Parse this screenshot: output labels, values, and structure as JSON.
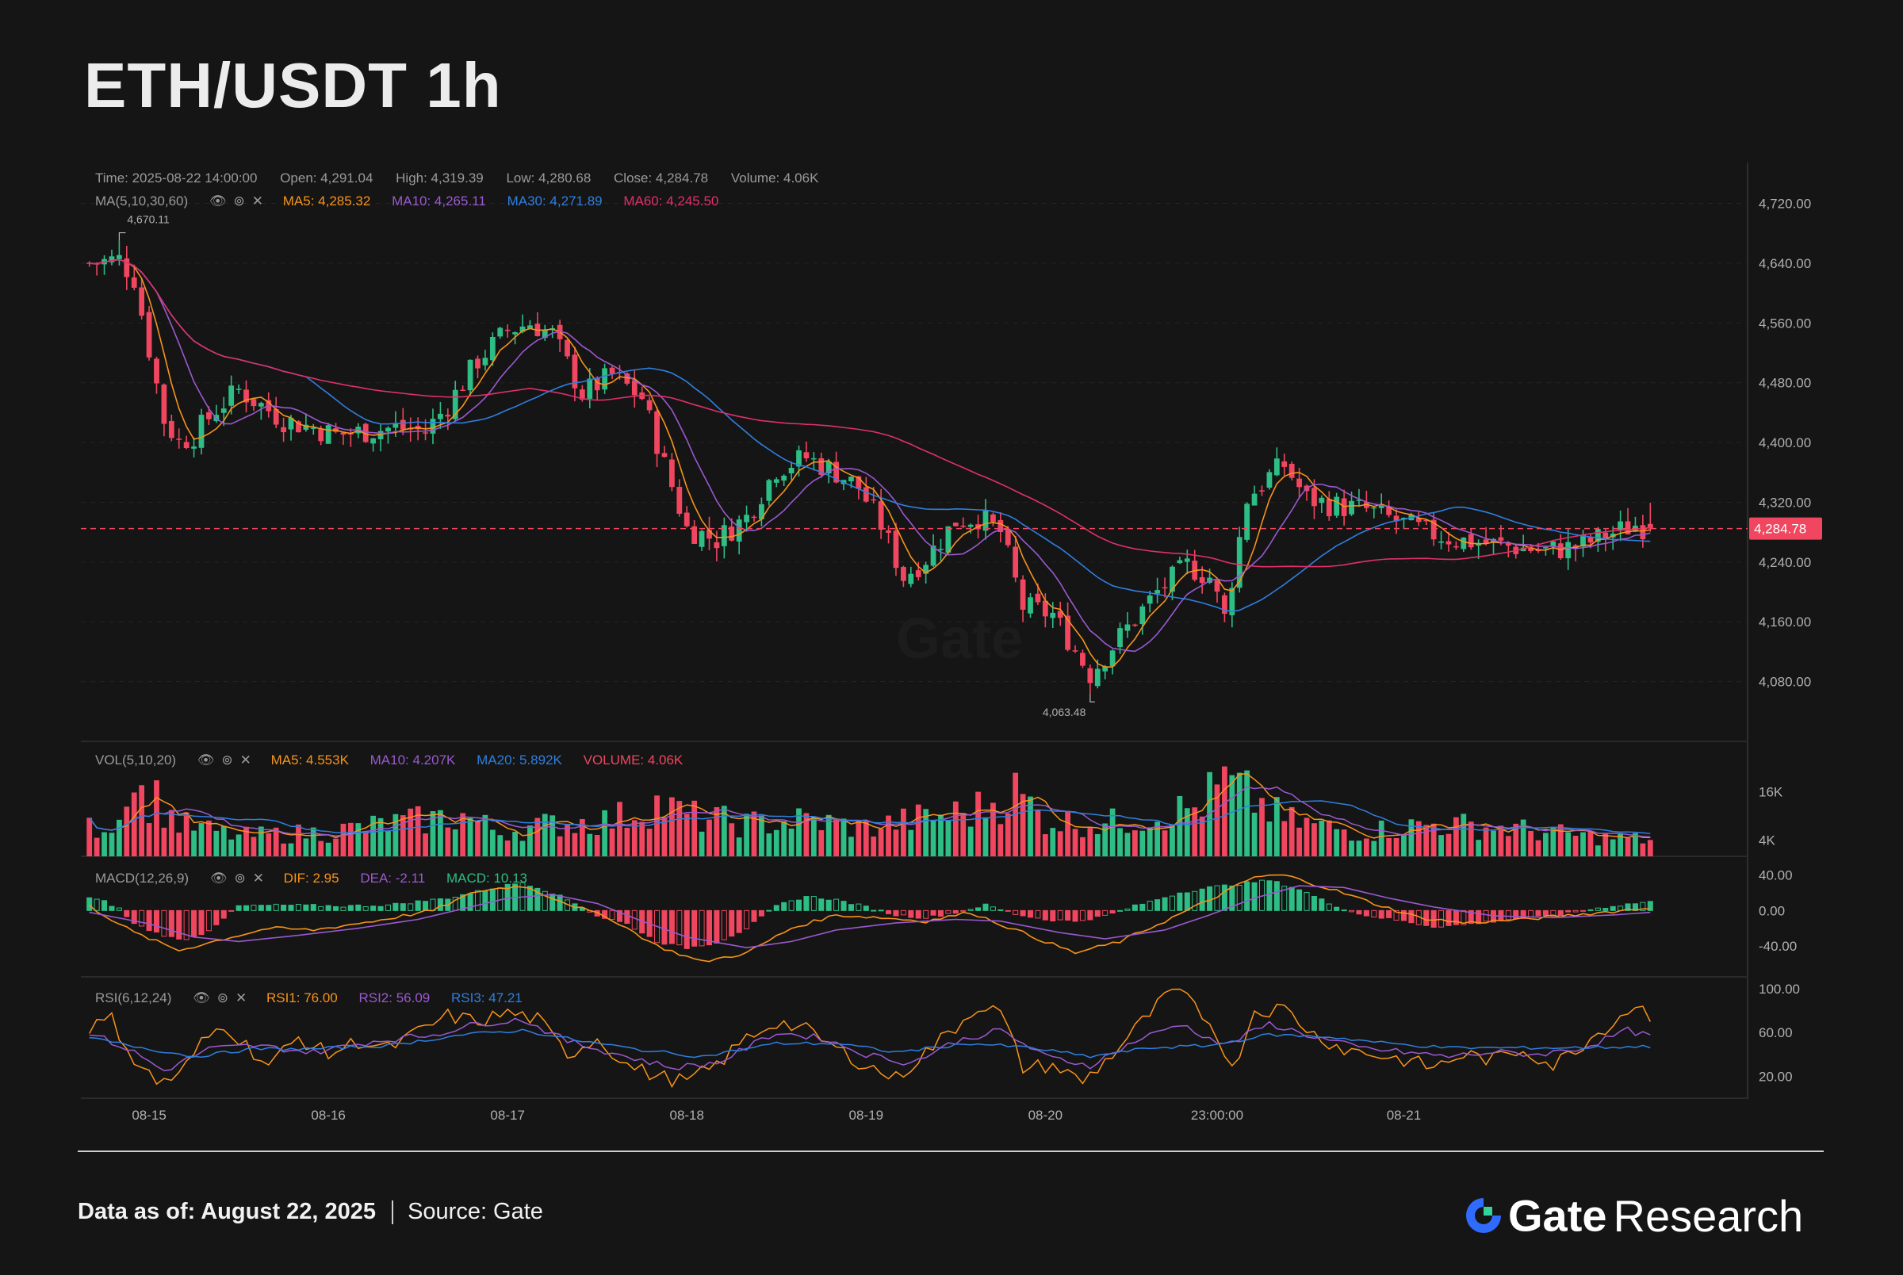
{
  "title": "ETH/USDT 1h",
  "ohlc_info": {
    "time": "Time: 2025-08-22 14:00:00",
    "open": "Open: 4,291.04",
    "high": "High: 4,319.39",
    "low": "Low: 4,280.68",
    "close": "Close: 4,284.78",
    "volume": "Volume: 4.06K"
  },
  "ma_info": {
    "label": "MA(5,10,30,60)",
    "ma5": "MA5: 4,285.32",
    "ma10": "MA10: 4,265.11",
    "ma30": "MA30: 4,271.89",
    "ma60": "MA60: 4,245.50"
  },
  "vol_info": {
    "label": "VOL(5,10,20)",
    "ma5": "MA5: 4.553K",
    "ma10": "MA10: 4.207K",
    "ma20": "MA20: 5.892K",
    "volume": "VOLUME: 4.06K"
  },
  "macd_info": {
    "label": "MACD(12,26,9)",
    "dif": "DIF: 2.95",
    "dea": "DEA: -2.11",
    "macd": "MACD: 10.13"
  },
  "rsi_info": {
    "label": "RSI(6,12,24)",
    "rsi1": "RSI1: 76.00",
    "rsi2": "RSI2: 56.09",
    "rsi3": "RSI3: 47.21"
  },
  "icons": [
    "eye-icon",
    "settings-icon",
    "close-icon"
  ],
  "colors": {
    "up": "#2ebd85",
    "down": "#f0465f",
    "ma5": "#f7931a",
    "ma10": "#9b59d0",
    "ma30": "#2f7fe0",
    "ma60": "#e0306a",
    "price_line": "#f0465f",
    "axis_text": "#b0b0b0",
    "grid": "#242424"
  },
  "chart_data": {
    "type": "candlestick",
    "symbol": "ETH/USDT",
    "interval": "1h",
    "price_axis": {
      "ticks": [
        4080,
        4160,
        4240,
        4320,
        4400,
        4480,
        4560,
        4640,
        4720
      ],
      "tick_labels": [
        "4,080.00",
        "4,160.00",
        "4,240.00",
        "4,320.00",
        "4,400.00",
        "4,480.00",
        "4,560.00",
        "4,640.00",
        "4,720.00"
      ],
      "range": [
        4000,
        4780
      ]
    },
    "x_axis": {
      "tick_labels": [
        "08-15",
        "08-16",
        "08-17",
        "08-18",
        "08-19",
        "08-20",
        "23:00:00",
        "08-21"
      ],
      "tick_bar_index": [
        8,
        32,
        56,
        80,
        104,
        128,
        151,
        176
      ]
    },
    "current_price": 4284.78,
    "current_price_label": "4,284.78",
    "high_marker": {
      "value": 4670.11,
      "label": "4,670.11",
      "bar_index": 4
    },
    "low_marker": {
      "value": 4063.48,
      "label": "4,063.48",
      "bar_index": 134
    },
    "price_keypoints": [
      [
        0,
        4640
      ],
      [
        4,
        4645
      ],
      [
        6,
        4620
      ],
      [
        10,
        4430
      ],
      [
        12,
        4400
      ],
      [
        14,
        4410
      ],
      [
        17,
        4445
      ],
      [
        20,
        4470
      ],
      [
        23,
        4450
      ],
      [
        26,
        4430
      ],
      [
        30,
        4420
      ],
      [
        33,
        4410
      ],
      [
        37,
        4415
      ],
      [
        41,
        4420
      ],
      [
        45,
        4415
      ],
      [
        48,
        4450
      ],
      [
        52,
        4510
      ],
      [
        56,
        4550
      ],
      [
        59,
        4560
      ],
      [
        62,
        4545
      ],
      [
        66,
        4465
      ],
      [
        70,
        4490
      ],
      [
        74,
        4460
      ],
      [
        77,
        4370
      ],
      [
        80,
        4285
      ],
      [
        84,
        4270
      ],
      [
        88,
        4300
      ],
      [
        92,
        4365
      ],
      [
        96,
        4380
      ],
      [
        100,
        4360
      ],
      [
        103,
        4340
      ],
      [
        106,
        4290
      ],
      [
        109,
        4220
      ],
      [
        112,
        4245
      ],
      [
        116,
        4295
      ],
      [
        119,
        4300
      ],
      [
        122,
        4280
      ],
      [
        125,
        4180
      ],
      [
        129,
        4170
      ],
      [
        134,
        4090
      ],
      [
        138,
        4140
      ],
      [
        143,
        4200
      ],
      [
        147,
        4235
      ],
      [
        150,
        4220
      ],
      [
        152,
        4165
      ],
      [
        155,
        4325
      ],
      [
        158,
        4355
      ],
      [
        160,
        4370
      ],
      [
        163,
        4325
      ],
      [
        167,
        4315
      ],
      [
        171,
        4310
      ],
      [
        175,
        4295
      ],
      [
        179,
        4280
      ],
      [
        183,
        4270
      ],
      [
        187,
        4265
      ],
      [
        191,
        4260
      ],
      [
        195,
        4255
      ],
      [
        199,
        4260
      ],
      [
        203,
        4275
      ],
      [
        207,
        4290
      ],
      [
        209,
        4284.78
      ]
    ],
    "volume_axis": {
      "ticks": [
        4000,
        16000
      ],
      "tick_labels": [
        "4K",
        "16K"
      ],
      "max": 24000
    },
    "volume_keypoints": [
      [
        0,
        7000
      ],
      [
        4,
        9000
      ],
      [
        5,
        22000
      ],
      [
        7,
        15000
      ],
      [
        9,
        14000
      ],
      [
        12,
        8000
      ],
      [
        20,
        5000
      ],
      [
        32,
        6000
      ],
      [
        40,
        8000
      ],
      [
        50,
        10000
      ],
      [
        55,
        6000
      ],
      [
        62,
        8000
      ],
      [
        70,
        9000
      ],
      [
        76,
        13000
      ],
      [
        80,
        10000
      ],
      [
        88,
        8000
      ],
      [
        96,
        9000
      ],
      [
        104,
        7000
      ],
      [
        110,
        9000
      ],
      [
        118,
        11000
      ],
      [
        124,
        16000
      ],
      [
        128,
        9000
      ],
      [
        136,
        8000
      ],
      [
        148,
        12000
      ],
      [
        152,
        18000
      ],
      [
        156,
        14000
      ],
      [
        160,
        9000
      ],
      [
        170,
        6000
      ],
      [
        180,
        8000
      ],
      [
        190,
        7000
      ],
      [
        200,
        5000
      ],
      [
        209,
        4060
      ]
    ],
    "macd_axis": {
      "ticks": [
        -40,
        0,
        40
      ],
      "tick_labels": [
        "-40.00",
        "0.00",
        "40.00"
      ],
      "range": [
        -75,
        55
      ]
    },
    "macd_hist_keypoints": [
      [
        0,
        14
      ],
      [
        2,
        10
      ],
      [
        4,
        2
      ],
      [
        6,
        -15
      ],
      [
        9,
        -25
      ],
      [
        12,
        -33
      ],
      [
        14,
        -30
      ],
      [
        16,
        -22
      ],
      [
        18,
        -8
      ],
      [
        20,
        5
      ],
      [
        26,
        6
      ],
      [
        34,
        5
      ],
      [
        40,
        6
      ],
      [
        48,
        14
      ],
      [
        54,
        25
      ],
      [
        58,
        32
      ],
      [
        62,
        20
      ],
      [
        66,
        4
      ],
      [
        68,
        -6
      ],
      [
        72,
        -15
      ],
      [
        76,
        -35
      ],
      [
        80,
        -42
      ],
      [
        84,
        -36
      ],
      [
        88,
        -20
      ],
      [
        92,
        5
      ],
      [
        96,
        16
      ],
      [
        100,
        12
      ],
      [
        104,
        4
      ],
      [
        108,
        -5
      ],
      [
        112,
        -8
      ],
      [
        116,
        -2
      ],
      [
        120,
        6
      ],
      [
        124,
        -4
      ],
      [
        128,
        -10
      ],
      [
        132,
        -12
      ],
      [
        136,
        -6
      ],
      [
        140,
        5
      ],
      [
        146,
        20
      ],
      [
        150,
        26
      ],
      [
        154,
        30
      ],
      [
        158,
        34
      ],
      [
        162,
        24
      ],
      [
        166,
        8
      ],
      [
        170,
        -4
      ],
      [
        176,
        -12
      ],
      [
        180,
        -18
      ],
      [
        184,
        -16
      ],
      [
        190,
        -10
      ],
      [
        196,
        -6
      ],
      [
        200,
        0
      ],
      [
        204,
        5
      ],
      [
        209,
        10.13
      ]
    ],
    "macd_dif_keypoints": [
      [
        0,
        5
      ],
      [
        6,
        -25
      ],
      [
        12,
        -45
      ],
      [
        18,
        -32
      ],
      [
        24,
        -20
      ],
      [
        30,
        -22
      ],
      [
        38,
        -12
      ],
      [
        46,
        0
      ],
      [
        52,
        22
      ],
      [
        58,
        28
      ],
      [
        64,
        8
      ],
      [
        70,
        -10
      ],
      [
        76,
        -40
      ],
      [
        82,
        -58
      ],
      [
        88,
        -48
      ],
      [
        94,
        -20
      ],
      [
        100,
        -5
      ],
      [
        106,
        -8
      ],
      [
        112,
        -12
      ],
      [
        118,
        -2
      ],
      [
        124,
        -22
      ],
      [
        132,
        -48
      ],
      [
        138,
        -35
      ],
      [
        144,
        -12
      ],
      [
        150,
        12
      ],
      [
        156,
        38
      ],
      [
        160,
        40
      ],
      [
        166,
        25
      ],
      [
        172,
        8
      ],
      [
        178,
        -8
      ],
      [
        184,
        -14
      ],
      [
        192,
        -10
      ],
      [
        200,
        -4
      ],
      [
        209,
        2.95
      ]
    ],
    "macd_dea_keypoints": [
      [
        0,
        -2
      ],
      [
        8,
        -15
      ],
      [
        14,
        -30
      ],
      [
        20,
        -35
      ],
      [
        28,
        -28
      ],
      [
        36,
        -20
      ],
      [
        44,
        -10
      ],
      [
        50,
        2
      ],
      [
        56,
        14
      ],
      [
        62,
        18
      ],
      [
        68,
        8
      ],
      [
        74,
        -12
      ],
      [
        80,
        -30
      ],
      [
        88,
        -42
      ],
      [
        94,
        -35
      ],
      [
        100,
        -22
      ],
      [
        108,
        -14
      ],
      [
        116,
        -10
      ],
      [
        122,
        -12
      ],
      [
        130,
        -25
      ],
      [
        136,
        -32
      ],
      [
        144,
        -22
      ],
      [
        150,
        -5
      ],
      [
        156,
        14
      ],
      [
        162,
        28
      ],
      [
        168,
        26
      ],
      [
        174,
        14
      ],
      [
        180,
        4
      ],
      [
        188,
        -6
      ],
      [
        196,
        -8
      ],
      [
        204,
        -5
      ],
      [
        209,
        -2.11
      ]
    ],
    "rsi_axis": {
      "ticks": [
        20,
        60,
        100
      ],
      "tick_labels": [
        "20.00",
        "60.00",
        "100.00"
      ],
      "range": [
        0,
        105
      ]
    },
    "rsi1_keypoints": [
      [
        0,
        65
      ],
      [
        3,
        72
      ],
      [
        6,
        35
      ],
      [
        9,
        15
      ],
      [
        12,
        20
      ],
      [
        15,
        50
      ],
      [
        18,
        68
      ],
      [
        21,
        48
      ],
      [
        24,
        30
      ],
      [
        28,
        55
      ],
      [
        32,
        40
      ],
      [
        36,
        52
      ],
      [
        40,
        45
      ],
      [
        44,
        60
      ],
      [
        48,
        75
      ],
      [
        52,
        70
      ],
      [
        56,
        78
      ],
      [
        60,
        72
      ],
      [
        64,
        40
      ],
      [
        68,
        55
      ],
      [
        72,
        30
      ],
      [
        76,
        20
      ],
      [
        80,
        15
      ],
      [
        84,
        30
      ],
      [
        88,
        55
      ],
      [
        92,
        70
      ],
      [
        96,
        62
      ],
      [
        100,
        45
      ],
      [
        104,
        30
      ],
      [
        108,
        18
      ],
      [
        112,
        42
      ],
      [
        116,
        65
      ],
      [
        119,
        85
      ],
      [
        122,
        78
      ],
      [
        125,
        28
      ],
      [
        129,
        30
      ],
      [
        133,
        15
      ],
      [
        137,
        40
      ],
      [
        141,
        70
      ],
      [
        145,
        98
      ],
      [
        148,
        85
      ],
      [
        151,
        60
      ],
      [
        153,
        25
      ],
      [
        156,
        80
      ],
      [
        160,
        82
      ],
      [
        164,
        58
      ],
      [
        168,
        45
      ],
      [
        172,
        40
      ],
      [
        176,
        35
      ],
      [
        180,
        28
      ],
      [
        184,
        40
      ],
      [
        188,
        35
      ],
      [
        192,
        45
      ],
      [
        196,
        30
      ],
      [
        200,
        50
      ],
      [
        204,
        70
      ],
      [
        207,
        86
      ],
      [
        209,
        76
      ]
    ],
    "rsi2_keypoints": [
      [
        0,
        60
      ],
      [
        6,
        42
      ],
      [
        10,
        25
      ],
      [
        16,
        45
      ],
      [
        22,
        48
      ],
      [
        30,
        42
      ],
      [
        38,
        52
      ],
      [
        46,
        58
      ],
      [
        52,
        68
      ],
      [
        58,
        72
      ],
      [
        64,
        52
      ],
      [
        72,
        38
      ],
      [
        78,
        28
      ],
      [
        84,
        32
      ],
      [
        92,
        60
      ],
      [
        98,
        55
      ],
      [
        104,
        40
      ],
      [
        110,
        32
      ],
      [
        116,
        52
      ],
      [
        122,
        62
      ],
      [
        128,
        38
      ],
      [
        134,
        30
      ],
      [
        140,
        52
      ],
      [
        146,
        68
      ],
      [
        152,
        48
      ],
      [
        158,
        68
      ],
      [
        164,
        56
      ],
      [
        170,
        46
      ],
      [
        176,
        42
      ],
      [
        182,
        38
      ],
      [
        188,
        42
      ],
      [
        194,
        40
      ],
      [
        200,
        46
      ],
      [
        206,
        62
      ],
      [
        209,
        56.09
      ]
    ],
    "rsi3_keypoints": [
      [
        0,
        55
      ],
      [
        8,
        45
      ],
      [
        14,
        38
      ],
      [
        22,
        45
      ],
      [
        30,
        45
      ],
      [
        40,
        48
      ],
      [
        50,
        58
      ],
      [
        58,
        62
      ],
      [
        66,
        52
      ],
      [
        74,
        44
      ],
      [
        82,
        38
      ],
      [
        92,
        50
      ],
      [
        100,
        50
      ],
      [
        108,
        42
      ],
      [
        118,
        50
      ],
      [
        126,
        46
      ],
      [
        134,
        38
      ],
      [
        142,
        46
      ],
      [
        150,
        48
      ],
      [
        158,
        58
      ],
      [
        166,
        56
      ],
      [
        174,
        50
      ],
      [
        182,
        46
      ],
      [
        190,
        46
      ],
      [
        198,
        46
      ],
      [
        209,
        47.21
      ]
    ]
  },
  "footer": {
    "data_as_of": "Data as of: August 22, 2025",
    "source": "Source: Gate",
    "brand_name": "Gate",
    "brand_suffix": "Research",
    "watermark": "Gate"
  }
}
